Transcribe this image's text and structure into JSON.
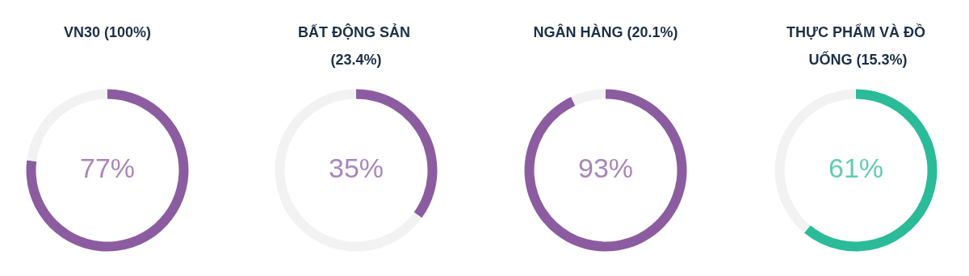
{
  "chart_data": [
    {
      "type": "donut",
      "title": "VN30 (100%)",
      "categories": [
        null,
        null
      ],
      "values": [
        77,
        23
      ],
      "colors": [
        "#8c5ca0",
        "#f2f2f2"
      ],
      "annotations": [
        "77%"
      ]
    },
    {
      "type": "donut",
      "title": "BẤT ĐỘNG SẢN (23.4%)",
      "categories": [
        null,
        null
      ],
      "values": [
        35,
        65
      ],
      "colors": [
        "#8c5ca0",
        "#f2f2f2"
      ],
      "annotations": [
        "35%"
      ]
    },
    {
      "type": "donut",
      "title": "NGÂN HÀNG (20.1%)",
      "categories": [
        null,
        null
      ],
      "values": [
        93,
        7
      ],
      "colors": [
        "#8c5ca0",
        "#f2f2f2"
      ],
      "annotations": [
        "93%"
      ]
    },
    {
      "type": "donut",
      "title": "THỰC PHẨM VÀ ĐỒ UỐNG (15.3%)",
      "categories": [
        null,
        null
      ],
      "values": [
        61,
        39
      ],
      "colors": [
        "#2bbb98",
        "#f2f2f2"
      ],
      "annotations": [
        "61%"
      ]
    }
  ]
}
